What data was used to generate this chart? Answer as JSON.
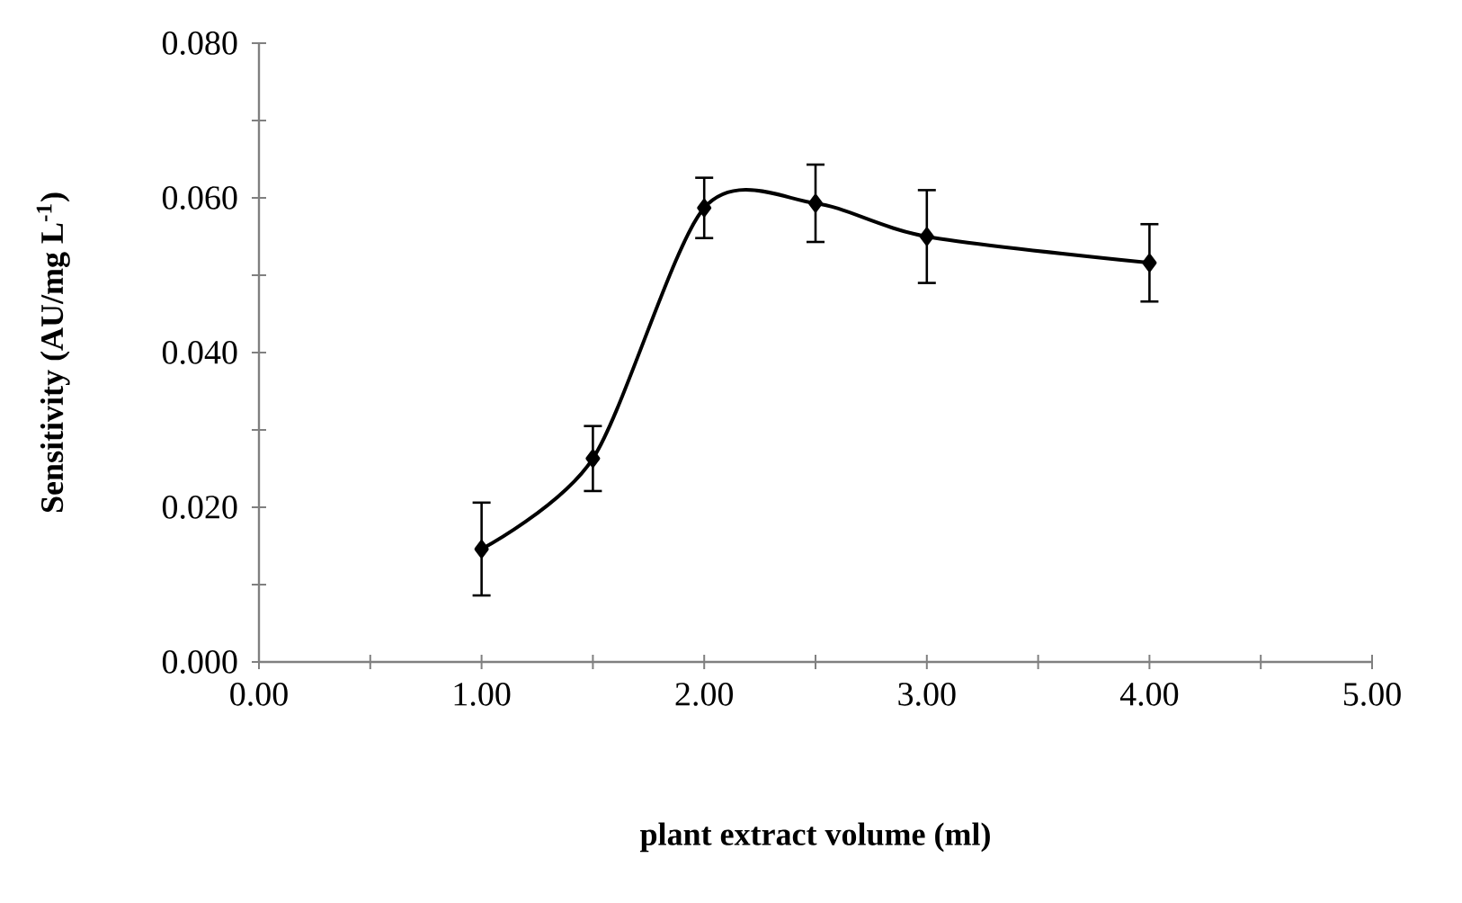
{
  "chart_data": {
    "type": "line",
    "xlabel": "plant  extract volume (ml)",
    "ylabel": "Sensitivity (AU/mg L$^{-1}$)",
    "x": [
      1.0,
      1.5,
      2.0,
      2.5,
      3.0,
      4.0
    ],
    "values": [
      0.0146,
      0.0263,
      0.0587,
      0.0593,
      0.055,
      0.0516
    ],
    "errors": [
      0.006,
      0.0042,
      0.0039,
      0.005,
      0.006,
      0.005
    ],
    "color": "#000000",
    "marker": "diamond",
    "line_style": "solid",
    "xlim": [
      0,
      5
    ],
    "ylim": [
      0,
      0.08
    ],
    "xticks": [
      {
        "value": 0,
        "label": "0.00"
      },
      {
        "value": 0.5,
        "label": null
      },
      {
        "value": 1,
        "label": "1.00"
      },
      {
        "value": 1.5,
        "label": null
      },
      {
        "value": 2,
        "label": "2.00"
      },
      {
        "value": 2.5,
        "label": null
      },
      {
        "value": 3,
        "label": "3.00"
      },
      {
        "value": 3.5,
        "label": null
      },
      {
        "value": 4,
        "label": "4.00"
      },
      {
        "value": 4.5,
        "label": null
      },
      {
        "value": 5,
        "label": "5.00"
      }
    ],
    "yticks": [
      {
        "value": 0,
        "label": "0.000"
      },
      {
        "value": 0.01,
        "label": null
      },
      {
        "value": 0.02,
        "label": "0.020"
      },
      {
        "value": 0.03,
        "label": null
      },
      {
        "value": 0.04,
        "label": "0.040"
      },
      {
        "value": 0.05,
        "label": null
      },
      {
        "value": 0.06,
        "label": "0.060"
      },
      {
        "value": 0.07,
        "label": null
      },
      {
        "value": 0.08,
        "label": "0.080"
      }
    ]
  }
}
